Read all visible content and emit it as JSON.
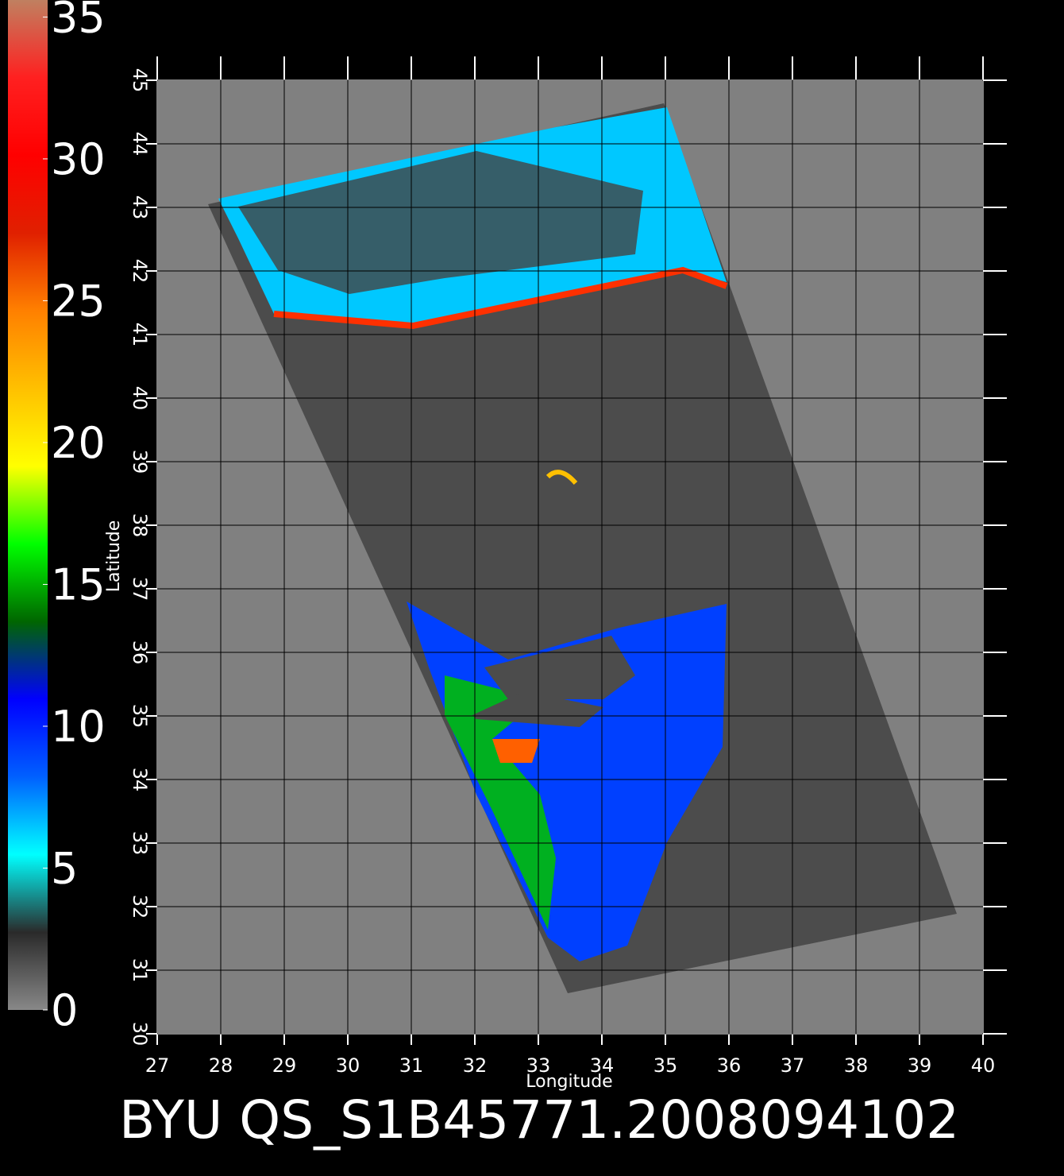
{
  "chart_data": {
    "type": "map",
    "title": "BYU QS_S1B45771.2008094102",
    "xlabel": "Longitude",
    "ylabel": "Latitude",
    "xlim": [
      27,
      40
    ],
    "ylim": [
      30,
      45
    ],
    "xticks": [
      27,
      28,
      29,
      30,
      31,
      32,
      33,
      34,
      35,
      36,
      37,
      38,
      39,
      40
    ],
    "yticks": [
      30,
      31,
      32,
      33,
      34,
      35,
      36,
      37,
      38,
      39,
      40,
      41,
      42,
      43,
      44,
      45
    ],
    "grid": true,
    "colorbar": {
      "lim": [
        0,
        35.6
      ],
      "ticks": [
        0,
        5,
        10,
        15,
        20,
        25,
        30,
        35
      ],
      "colors": [
        "#888888",
        "#2a2a2a",
        "#00ffff",
        "#0060ff",
        "#0000ff",
        "#006600",
        "#00ff00",
        "#ffff00",
        "#ffc000",
        "#ff8000",
        "#e02000",
        "#ff0000",
        "#ff2020",
        "#c08060"
      ]
    }
  }
}
